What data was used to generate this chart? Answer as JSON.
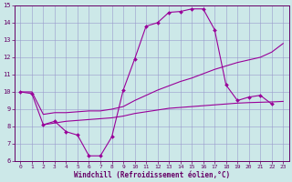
{
  "xlabel": "Windchill (Refroidissement éolien,°C)",
  "bg_color": "#cce8e8",
  "grid_color": "#9999cc",
  "line_color": "#990099",
  "xlim": [
    -0.5,
    23.5
  ],
  "ylim": [
    6,
    15
  ],
  "xticks": [
    0,
    1,
    2,
    3,
    4,
    5,
    6,
    7,
    8,
    9,
    10,
    11,
    12,
    13,
    14,
    15,
    16,
    17,
    18,
    19,
    20,
    21,
    22,
    23
  ],
  "yticks": [
    6,
    7,
    8,
    9,
    10,
    11,
    12,
    13,
    14,
    15
  ],
  "line1_x": [
    0,
    1,
    2,
    3,
    4,
    5,
    6,
    7,
    8,
    9,
    10,
    11,
    12,
    13,
    14,
    15,
    16,
    17,
    18,
    19,
    20,
    21,
    22
  ],
  "line1_y": [
    10.0,
    9.9,
    8.1,
    8.3,
    7.7,
    7.5,
    6.3,
    6.3,
    7.4,
    10.1,
    11.9,
    13.8,
    14.0,
    14.6,
    14.65,
    14.8,
    14.8,
    13.6,
    10.4,
    9.5,
    9.7,
    9.8,
    9.3
  ],
  "line2_x": [
    0,
    1,
    2,
    3,
    4,
    5,
    6,
    7,
    8,
    9,
    10,
    11,
    12,
    13,
    14,
    15,
    16,
    17,
    18,
    19,
    20,
    21,
    22,
    23
  ],
  "line2_y": [
    10.0,
    10.0,
    8.7,
    8.8,
    8.8,
    8.85,
    8.9,
    8.9,
    9.0,
    9.15,
    9.5,
    9.8,
    10.1,
    10.35,
    10.6,
    10.8,
    11.05,
    11.3,
    11.5,
    11.7,
    11.85,
    12.0,
    12.3,
    12.8
  ],
  "line3_x": [
    2,
    3,
    4,
    5,
    6,
    7,
    8,
    9,
    10,
    11,
    12,
    13,
    14,
    15,
    16,
    17,
    18,
    19,
    20,
    21,
    22,
    23
  ],
  "line3_y": [
    8.1,
    8.2,
    8.3,
    8.35,
    8.4,
    8.45,
    8.5,
    8.6,
    8.75,
    8.85,
    8.95,
    9.05,
    9.1,
    9.15,
    9.2,
    9.25,
    9.3,
    9.35,
    9.38,
    9.4,
    9.42,
    9.45
  ]
}
